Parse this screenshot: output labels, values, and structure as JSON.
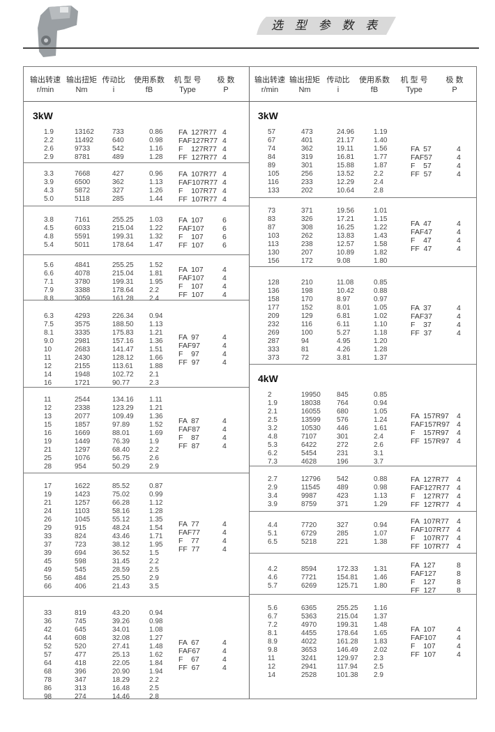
{
  "page_title": "选 型 参 数 表",
  "header": {
    "labels": [
      "输出转速",
      "输出扭矩",
      "传动比",
      "使用系数",
      "机 型 号",
      "极 数"
    ],
    "units": [
      "r/min",
      "Nm",
      "i",
      "fB",
      "Type",
      "P"
    ]
  },
  "halves": [
    {
      "groups": [
        {
          "title": "3kW",
          "rows": [
            [
              "1.9",
              "13162",
              "733",
              "0.86"
            ],
            [
              "2.2",
              "11492",
              "640",
              "0.98"
            ],
            [
              "2.6",
              "9733",
              "542",
              "1.16"
            ],
            [
              "2.9",
              "8781",
              "489",
              "1.28"
            ]
          ],
          "types": [
            [
              "FA  127R77",
              "4"
            ],
            [
              "FAF127R77",
              "4"
            ],
            [
              "F    127R77",
              "4"
            ],
            [
              "FF  127R77",
              "4"
            ]
          ]
        },
        {
          "rows": [
            [
              "3.3",
              "7668",
              "427",
              "0.96"
            ],
            [
              "3.9",
              "6500",
              "362",
              "1.13"
            ],
            [
              "4.3",
              "5872",
              "327",
              "1.26"
            ],
            [
              "5.0",
              "5118",
              "285",
              "1.44"
            ]
          ],
          "types": [
            [
              "FA  107R77",
              "4"
            ],
            [
              "FAF107R77",
              "4"
            ],
            [
              "F    107R77",
              "4"
            ],
            [
              "FF  107R77",
              "4"
            ]
          ]
        },
        {
          "rows": [
            [
              "3.8",
              "7161",
              "255.25",
              "1.03"
            ],
            [
              "4.5",
              "6033",
              "215.04",
              "1.22"
            ],
            [
              "4.8",
              "5591",
              "199.31",
              "1.32"
            ],
            [
              "5.4",
              "5011",
              "178.64",
              "1.47"
            ]
          ],
          "types": [
            [
              "FA  107",
              "6"
            ],
            [
              "FAF107",
              "6"
            ],
            [
              "F    107",
              "6"
            ],
            [
              "FF  107",
              "6"
            ]
          ]
        },
        {
          "rows": [
            [
              "5.6",
              "4841",
              "255.25",
              "1.52"
            ],
            [
              "6.6",
              "4078",
              "215.04",
              "1.81"
            ],
            [
              "7.1",
              "3780",
              "199.31",
              "1.95"
            ],
            [
              "7.9",
              "3388",
              "178.64",
              "2.2"
            ],
            [
              "8.8",
              "3059",
              "161.28",
              "2.4"
            ]
          ],
          "types": [
            [
              "FA  107",
              "4"
            ],
            [
              "FAF107",
              "4"
            ],
            [
              "F    107",
              "4"
            ],
            [
              "FF  107",
              "4"
            ]
          ]
        },
        {
          "rows": [
            [
              "6.3",
              "4293",
              "226.34",
              "0.94"
            ],
            [
              "7.5",
              "3575",
              "188.50",
              "1.13"
            ],
            [
              "8.1",
              "3335",
              "175.83",
              "1.21"
            ],
            [
              "9.0",
              "2981",
              "157.16",
              "1.36"
            ],
            [
              "10",
              "2683",
              "141.47",
              "1.51"
            ],
            [
              "11",
              "2430",
              "128.12",
              "1.66"
            ],
            [
              "12",
              "2155",
              "113.61",
              "1.88"
            ],
            [
              "14",
              "1948",
              "102.72",
              "2.1"
            ],
            [
              "16",
              "1721",
              "90.77",
              "2.3"
            ]
          ],
          "types": [
            [
              "FA  97",
              "4"
            ],
            [
              "FAF97",
              "4"
            ],
            [
              "F    97",
              "4"
            ],
            [
              "FF  97",
              "4"
            ]
          ]
        },
        {
          "rows": [
            [
              "11",
              "2544",
              "134.16",
              "1.11"
            ],
            [
              "12",
              "2338",
              "123.29",
              "1.21"
            ],
            [
              "13",
              "2077",
              "109.49",
              "1.36"
            ],
            [
              "15",
              "1857",
              "97.89",
              "1.52"
            ],
            [
              "16",
              "1669",
              "88.01",
              "1.69"
            ],
            [
              "19",
              "1449",
              "76.39",
              "1.9"
            ],
            [
              "21",
              "1297",
              "68.40",
              "2.2"
            ],
            [
              "25",
              "1076",
              "56.75",
              "2.6"
            ],
            [
              "28",
              "954",
              "50.29",
              "2.9"
            ]
          ],
          "types": [
            [
              "FA  87",
              "4"
            ],
            [
              "FAF87",
              "4"
            ],
            [
              "F    87",
              "4"
            ],
            [
              "FF  87",
              "4"
            ]
          ]
        },
        {
          "rows": [
            [
              "17",
              "1622",
              "85.52",
              "0.87"
            ],
            [
              "19",
              "1423",
              "75.02",
              "0.99"
            ],
            [
              "21",
              "1257",
              "66.28",
              "1.12"
            ],
            [
              "24",
              "1103",
              "58.16",
              "1.28"
            ],
            [
              "26",
              "1045",
              "55.12",
              "1.35"
            ],
            [
              "29",
              "915",
              "48.24",
              "1.54"
            ],
            [
              "33",
              "824",
              "43.46",
              "1.71"
            ],
            [
              "37",
              "723",
              "38.12",
              "1.95"
            ],
            [
              "39",
              "694",
              "36.52",
              "1.5"
            ],
            [
              "45",
              "598",
              "31.45",
              "2.2"
            ],
            [
              "49",
              "545",
              "28.59",
              "2.5"
            ],
            [
              "56",
              "484",
              "25.50",
              "2.9"
            ],
            [
              "66",
              "406",
              "21.43",
              "3.5"
            ]
          ],
          "types": [
            [
              "FA  77",
              "4"
            ],
            [
              "FAF77",
              "4"
            ],
            [
              "F    77",
              "4"
            ],
            [
              "FF  77",
              "4"
            ]
          ]
        },
        {
          "rows": [
            [
              "33",
              "819",
              "43.20",
              "0.94"
            ],
            [
              "36",
              "745",
              "39.26",
              "0.98"
            ],
            [
              "42",
              "645",
              "34.01",
              "1.08"
            ],
            [
              "44",
              "608",
              "32.08",
              "1.27"
            ],
            [
              "52",
              "520",
              "27.41",
              "1.48"
            ],
            [
              "57",
              "477",
              "25.13",
              "1.62"
            ],
            [
              "64",
              "418",
              "22.05",
              "1.84"
            ],
            [
              "68",
              "396",
              "20.90",
              "1.94"
            ],
            [
              "78",
              "347",
              "18.29",
              "2.2"
            ],
            [
              "86",
              "313",
              "16.48",
              "2.5"
            ],
            [
              "98",
              "274",
              "14.46",
              "2.8"
            ]
          ],
          "types": [
            [
              "FA  67",
              "4"
            ],
            [
              "FAF67",
              "4"
            ],
            [
              "F    67",
              "4"
            ],
            [
              "FF  67",
              "4"
            ]
          ]
        }
      ]
    },
    {
      "groups": [
        {
          "title": "3kW",
          "rows": [
            [
              "57",
              "473",
              "24.96",
              "1.19"
            ],
            [
              "67",
              "401",
              "21.17",
              "1.40"
            ],
            [
              "74",
              "362",
              "19.11",
              "1.56"
            ],
            [
              "84",
              "319",
              "16.81",
              "1.77"
            ],
            [
              "89",
              "301",
              "15.88",
              "1.87"
            ],
            [
              "105",
              "256",
              "13.52",
              "2.2"
            ],
            [
              "116",
              "233",
              "12.29",
              "2.4"
            ],
            [
              "133",
              "202",
              "10.64",
              "2.8"
            ]
          ],
          "types": [
            [
              "FA  57",
              "4"
            ],
            [
              "FAF57",
              "4"
            ],
            [
              "F    57",
              "4"
            ],
            [
              "FF  57",
              "4"
            ]
          ]
        },
        {
          "rows": [
            [
              "73",
              "371",
              "19.56",
              "1.01"
            ],
            [
              "83",
              "326",
              "17.21",
              "1.15"
            ],
            [
              "87",
              "308",
              "16.25",
              "1.22"
            ],
            [
              "103",
              "262",
              "13.83",
              "1.43"
            ],
            [
              "113",
              "238",
              "12.57",
              "1.58"
            ],
            [
              "130",
              "207",
              "10.89",
              "1.82"
            ],
            [
              "156",
              "172",
              "9.08",
              "1.80"
            ]
          ],
          "types": [
            [
              "FA  47",
              "4"
            ],
            [
              "FAF47",
              "4"
            ],
            [
              "F    47",
              "4"
            ],
            [
              "FF  47",
              "4"
            ]
          ]
        },
        {
          "rows": [
            [
              "128",
              "210",
              "11.08",
              "0.85"
            ],
            [
              "136",
              "198",
              "10.42",
              "0.88"
            ],
            [
              "158",
              "170",
              "8.97",
              "0.97"
            ],
            [
              "177",
              "152",
              "8.01",
              "1.05"
            ],
            [
              "209",
              "129",
              "6.81",
              "1.02"
            ],
            [
              "232",
              "116",
              "6.11",
              "1.10"
            ],
            [
              "269",
              "100",
              "5.27",
              "1.18"
            ],
            [
              "287",
              "94",
              "4.95",
              "1.20"
            ],
            [
              "333",
              "81",
              "4.26",
              "1.28"
            ],
            [
              "373",
              "72",
              "3.81",
              "1.37"
            ]
          ],
          "types": [
            [
              "FA  37",
              "4"
            ],
            [
              "FAF37",
              "4"
            ],
            [
              "F    37",
              "4"
            ],
            [
              "FF  37",
              "4"
            ]
          ]
        },
        {
          "title": "4kW",
          "rows": [
            [
              "2",
              "19950",
              "845",
              "0.85"
            ],
            [
              "1.9",
              "18038",
              "764",
              "0.94"
            ],
            [
              "2.1",
              "16055",
              "680",
              "1.05"
            ],
            [
              "2.5",
              "13599",
              "576",
              "1.24"
            ],
            [
              "3.2",
              "10530",
              "446",
              "1.61"
            ],
            [
              "4.8",
              "7107",
              "301",
              "2.4"
            ],
            [
              "5.3",
              "6422",
              "272",
              "2.6"
            ],
            [
              "6.2",
              "5454",
              "231",
              "3.1"
            ],
            [
              "7.3",
              "4628",
              "196",
              "3.7"
            ]
          ],
          "types": [
            [
              "FA  157R97",
              "4"
            ],
            [
              "FAF157R97",
              "4"
            ],
            [
              "F    157R97",
              "4"
            ],
            [
              "FF  157R97",
              "4"
            ]
          ]
        },
        {
          "rows": [
            [
              "2.7",
              "12796",
              "542",
              "0.88"
            ],
            [
              "2.9",
              "11545",
              "489",
              "0.98"
            ],
            [
              "3.4",
              "9987",
              "423",
              "1.13"
            ],
            [
              "3.9",
              "8759",
              "371",
              "1.29"
            ]
          ],
          "types": [
            [
              "FA  127R77",
              "4"
            ],
            [
              "FAF127R77",
              "4"
            ],
            [
              "F    127R77",
              "4"
            ],
            [
              "FF  127R77",
              "4"
            ]
          ]
        },
        {
          "rows": [
            [
              "4.4",
              "7720",
              "327",
              "0.94"
            ],
            [
              "5.1",
              "6729",
              "285",
              "1.07"
            ],
            [
              "6.5",
              "5218",
              "221",
              "1.38"
            ]
          ],
          "types": [
            [
              "FA  107R77",
              "4"
            ],
            [
              "FAF107R77",
              "4"
            ],
            [
              "F    107R77",
              "4"
            ],
            [
              "FF  107R77",
              "4"
            ]
          ]
        },
        {
          "rows": [
            [
              "4.2",
              "8594",
              "172.33",
              "1.31"
            ],
            [
              "4.6",
              "7721",
              "154.81",
              "1.46"
            ],
            [
              "5.7",
              "6269",
              "125.71",
              "1.80"
            ]
          ],
          "types": [
            [
              "FA  127",
              "8"
            ],
            [
              "FAF127",
              "8"
            ],
            [
              "F    127",
              "8"
            ],
            [
              "FF  127",
              "8"
            ]
          ]
        },
        {
          "rows": [
            [
              "5.6",
              "6365",
              "255.25",
              "1.16"
            ],
            [
              "6.7",
              "5363",
              "215.04",
              "1.37"
            ],
            [
              "7.2",
              "4970",
              "199.31",
              "1.48"
            ],
            [
              "8.1",
              "4455",
              "178.64",
              "1.65"
            ],
            [
              "8.9",
              "4022",
              "161.28",
              "1.83"
            ],
            [
              "9.8",
              "3653",
              "146.49",
              "2.02"
            ],
            [
              "11",
              "3241",
              "129.97",
              "2.3"
            ],
            [
              "12",
              "2941",
              "117.94",
              "2.5"
            ],
            [
              "14",
              "2528",
              "101.38",
              "2.9"
            ]
          ],
          "types": [
            [
              "FA  107",
              "4"
            ],
            [
              "FAF107",
              "4"
            ],
            [
              "F    107",
              "4"
            ],
            [
              "FF  107",
              "4"
            ]
          ]
        }
      ]
    }
  ],
  "colors": {
    "banner": "#d9d9d9",
    "rule": "#444444",
    "text": "#333333"
  },
  "icons": {
    "logo": "gear-motor-image"
  }
}
